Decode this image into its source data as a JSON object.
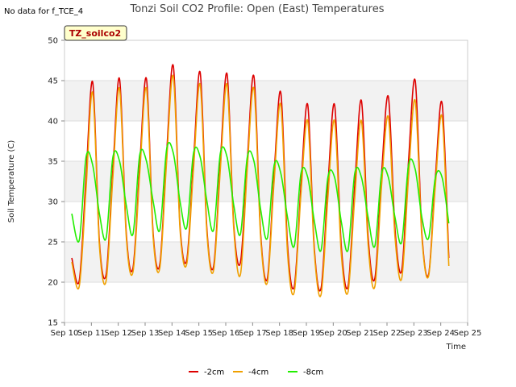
{
  "no_data_note": "No data for f_TCE_4",
  "chart_data": {
    "type": "line",
    "title": "Tonzi Soil CO2 Profile: Open (East) Temperatures",
    "xlabel": "Time",
    "ylabel": "Soil Temperature (C)",
    "ylim": [
      15,
      50
    ],
    "yticks": [
      15,
      20,
      25,
      30,
      35,
      40,
      45,
      50
    ],
    "xlim": [
      10,
      25
    ],
    "xticks": [
      10,
      11,
      12,
      13,
      14,
      15,
      16,
      17,
      18,
      19,
      20,
      21,
      22,
      23,
      24,
      25
    ],
    "xtick_labels": [
      "Sep 10",
      "Sep 11",
      "Sep 12",
      "Sep 13",
      "Sep 14",
      "Sep 15",
      "Sep 16",
      "Sep 17",
      "Sep 18",
      "Sep 19",
      "Sep 20",
      "Sep 21",
      "Sep 22",
      "Sep 23",
      "Sep 24",
      "Sep 25"
    ],
    "x_unit": "day of September",
    "grid": true,
    "legend_position": "bottom",
    "tag_label": "TZ_soilco2",
    "series": [
      {
        "name": "-2cm",
        "color": "#dd0000",
        "x": [
          10.27,
          10.55,
          10.8,
          11.05,
          11.3,
          11.55,
          11.8,
          12.05,
          12.3,
          12.55,
          12.8,
          13.05,
          13.3,
          13.55,
          13.8,
          14.05,
          14.3,
          14.55,
          14.8,
          15.05,
          15.3,
          15.55,
          15.8,
          16.05,
          16.3,
          16.55,
          16.8,
          17.05,
          17.3,
          17.55,
          17.8,
          18.05,
          18.3,
          18.55,
          18.8,
          19.05,
          19.3,
          19.55,
          19.8,
          20.05,
          20.3,
          20.55,
          20.8,
          21.05,
          21.3,
          21.55,
          21.8,
          22.05,
          22.3,
          22.55,
          22.8,
          23.05,
          23.3,
          23.55,
          23.8,
          24.05,
          24.3
        ],
        "y": [
          23.0,
          20.2,
          33.0,
          44.8,
          25.0,
          21.0,
          34.0,
          45.2,
          26.0,
          21.8,
          34.5,
          45.2,
          26.0,
          22.3,
          36.0,
          46.8,
          27.0,
          22.8,
          35.0,
          46.0,
          26.5,
          22.0,
          35.0,
          45.8,
          27.0,
          22.5,
          35.0,
          45.5,
          26.0,
          20.5,
          33.5,
          43.5,
          24.5,
          19.5,
          32.0,
          42.0,
          24.0,
          19.3,
          32.0,
          42.0,
          24.5,
          19.5,
          32.0,
          42.5,
          25.5,
          20.5,
          33.5,
          43.0,
          26.5,
          21.5,
          35.0,
          45.0,
          26.0,
          21.0,
          33.0,
          42.2,
          23.0
        ]
      },
      {
        "name": "-4cm",
        "color": "#f0a000",
        "x": [
          10.27,
          10.55,
          10.8,
          11.05,
          11.3,
          11.55,
          11.8,
          12.05,
          12.3,
          12.55,
          12.8,
          13.05,
          13.3,
          13.55,
          13.8,
          14.05,
          14.3,
          14.55,
          14.8,
          15.05,
          15.3,
          15.55,
          15.8,
          16.05,
          16.3,
          16.55,
          16.8,
          17.05,
          17.3,
          17.55,
          17.8,
          18.05,
          18.3,
          18.55,
          18.8,
          19.05,
          19.3,
          19.55,
          19.8,
          20.05,
          20.3,
          20.55,
          20.8,
          21.05,
          21.3,
          21.55,
          21.8,
          22.05,
          22.3,
          22.55,
          22.8,
          23.05,
          23.3,
          23.55,
          23.8,
          24.05,
          24.3
        ],
        "y": [
          22.5,
          19.5,
          31.5,
          43.5,
          24.5,
          20.2,
          33.0,
          44.0,
          25.5,
          21.3,
          33.5,
          44.0,
          25.5,
          21.8,
          35.0,
          45.5,
          26.5,
          22.3,
          34.0,
          44.5,
          26.0,
          21.5,
          34.0,
          44.5,
          26.5,
          21.0,
          34.0,
          44.0,
          25.5,
          20.0,
          32.5,
          42.0,
          23.5,
          18.8,
          31.0,
          40.0,
          23.5,
          18.5,
          30.5,
          40.0,
          23.5,
          18.8,
          30.5,
          40.0,
          24.5,
          19.5,
          32.0,
          40.5,
          25.5,
          20.5,
          33.0,
          42.5,
          25.5,
          20.8,
          32.0,
          40.5,
          22.0
        ]
      },
      {
        "name": "-8cm",
        "color": "#22ee00",
        "x": [
          10.27,
          10.55,
          10.8,
          11.05,
          11.3,
          11.55,
          11.8,
          12.05,
          12.3,
          12.55,
          12.8,
          13.05,
          13.3,
          13.55,
          13.8,
          14.05,
          14.3,
          14.55,
          14.8,
          15.05,
          15.3,
          15.55,
          15.8,
          16.05,
          16.3,
          16.55,
          16.8,
          17.05,
          17.3,
          17.55,
          17.8,
          18.05,
          18.3,
          18.55,
          18.8,
          19.05,
          19.3,
          19.55,
          19.8,
          20.05,
          20.3,
          20.55,
          20.8,
          21.05,
          21.3,
          21.55,
          21.8,
          22.05,
          22.3,
          22.55,
          22.8,
          23.05,
          23.3,
          23.55,
          23.8,
          24.05,
          24.3
        ],
        "y": [
          28.5,
          25.2,
          35.5,
          34.5,
          28.5,
          25.5,
          35.5,
          35.0,
          29.5,
          26.0,
          35.8,
          35.0,
          30.0,
          26.5,
          36.5,
          36.0,
          30.0,
          26.8,
          36.0,
          35.5,
          30.0,
          26.5,
          36.0,
          35.5,
          29.5,
          26.0,
          35.5,
          35.0,
          29.0,
          25.5,
          34.5,
          33.5,
          28.0,
          24.5,
          33.5,
          33.0,
          27.5,
          24.0,
          33.0,
          33.0,
          27.5,
          24.0,
          33.5,
          33.0,
          28.0,
          24.5,
          33.5,
          33.0,
          28.0,
          25.0,
          34.5,
          34.0,
          28.0,
          25.5,
          33.0,
          33.0,
          27.3
        ]
      }
    ]
  }
}
